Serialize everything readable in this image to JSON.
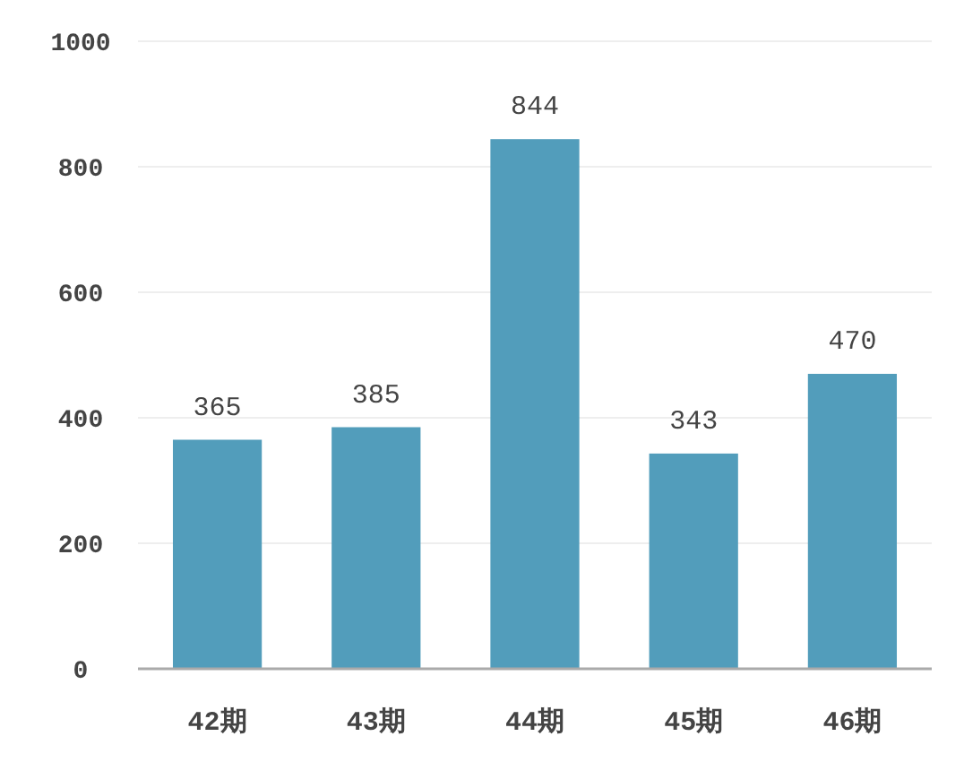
{
  "chart_data": {
    "type": "bar",
    "categories": [
      "42期",
      "43期",
      "44期",
      "45期",
      "46期"
    ],
    "values": [
      365,
      385,
      844,
      343,
      470
    ],
    "color": "#529dbb",
    "ylim": [
      0,
      1000
    ],
    "yticks": [
      0,
      200,
      400,
      600,
      800,
      1000
    ],
    "grid": "y",
    "data_labels": true
  }
}
